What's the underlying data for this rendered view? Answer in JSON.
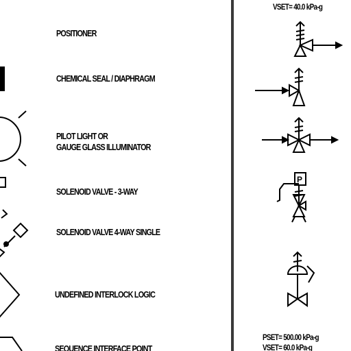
{
  "legend": {
    "positioner": "POSITIONER",
    "chemical_seal": "CHEMICAL SEAL / DIAPHRAGM",
    "pilot_light_line1": "PILOT LIGHT OR",
    "pilot_light_line2": "GAUGE GLASS ILLUMINATOR",
    "solenoid_3way": "SOLENOID VALVE - 3-WAY",
    "solenoid_4way": "SOLENOID VALVE 4-WAY SINGLE",
    "interlock": "UNDEFINED INTERLOCK LOGIC",
    "sequence": "SEQUENCE INTERFACE POINT"
  },
  "right": {
    "vset_top": "VSET= 40.0 kPa-g",
    "pset_bottom": "PSET= 500.00 kPa-g",
    "vset_bottom": "VSET= 60.0 kPa-g",
    "solenoid_letter": "P"
  },
  "colors": {
    "ink": "#000000",
    "divider": "#3a3a3a",
    "background": "#ffffff"
  }
}
